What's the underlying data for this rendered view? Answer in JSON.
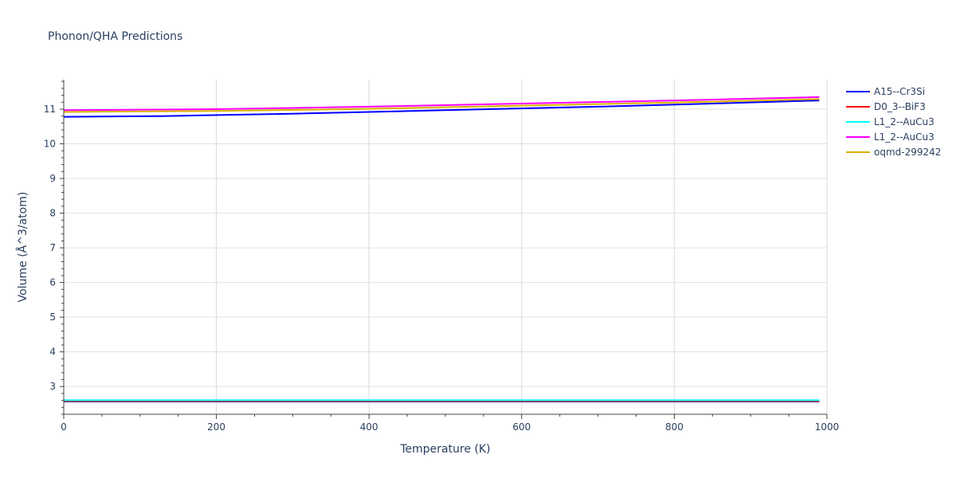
{
  "chart_data": {
    "type": "line",
    "title": "Phonon/QHA Predictions",
    "xlabel": "Temperature (K)",
    "ylabel": "Volume (Å^3/atom)",
    "xlim": [
      0,
      1000
    ],
    "ylim": [
      2.2,
      11.85
    ],
    "xticks": [
      0,
      200,
      400,
      600,
      800,
      1000
    ],
    "yticks": [
      3,
      4,
      5,
      6,
      7,
      8,
      9,
      10,
      11
    ],
    "grid": true,
    "legend_position": "top-right",
    "series": [
      {
        "name": "A15--Cr3Si",
        "color": "#0000ff",
        "x": [
          0,
          130,
          300,
          500,
          700,
          850,
          990
        ],
        "y": [
          10.78,
          10.8,
          10.87,
          10.97,
          11.07,
          11.16,
          11.25
        ]
      },
      {
        "name": "D0_3--BiF3",
        "color": "#ff0000",
        "x": [
          0,
          990
        ],
        "y": [
          2.585,
          2.585
        ]
      },
      {
        "name": "L1_2--AuCu3",
        "color": "#00ffff",
        "x": [
          0,
          990
        ],
        "y": [
          2.605,
          2.605
        ]
      },
      {
        "name": "L1_2--AuCu3",
        "color": "#ff00ff",
        "x": [
          0,
          200,
          400,
          600,
          800,
          990
        ],
        "y": [
          10.97,
          11.0,
          11.07,
          11.16,
          11.25,
          11.35
        ]
      },
      {
        "name": "oqmd-299242",
        "color": "#dab000",
        "x": [
          0,
          200,
          400,
          600,
          800,
          990
        ],
        "y": [
          10.92,
          10.95,
          11.01,
          11.1,
          11.19,
          11.29
        ]
      }
    ],
    "extra_lines": [
      {
        "color": "#000080",
        "x": [
          0,
          990
        ],
        "y": [
          2.57,
          2.57
        ]
      }
    ]
  }
}
